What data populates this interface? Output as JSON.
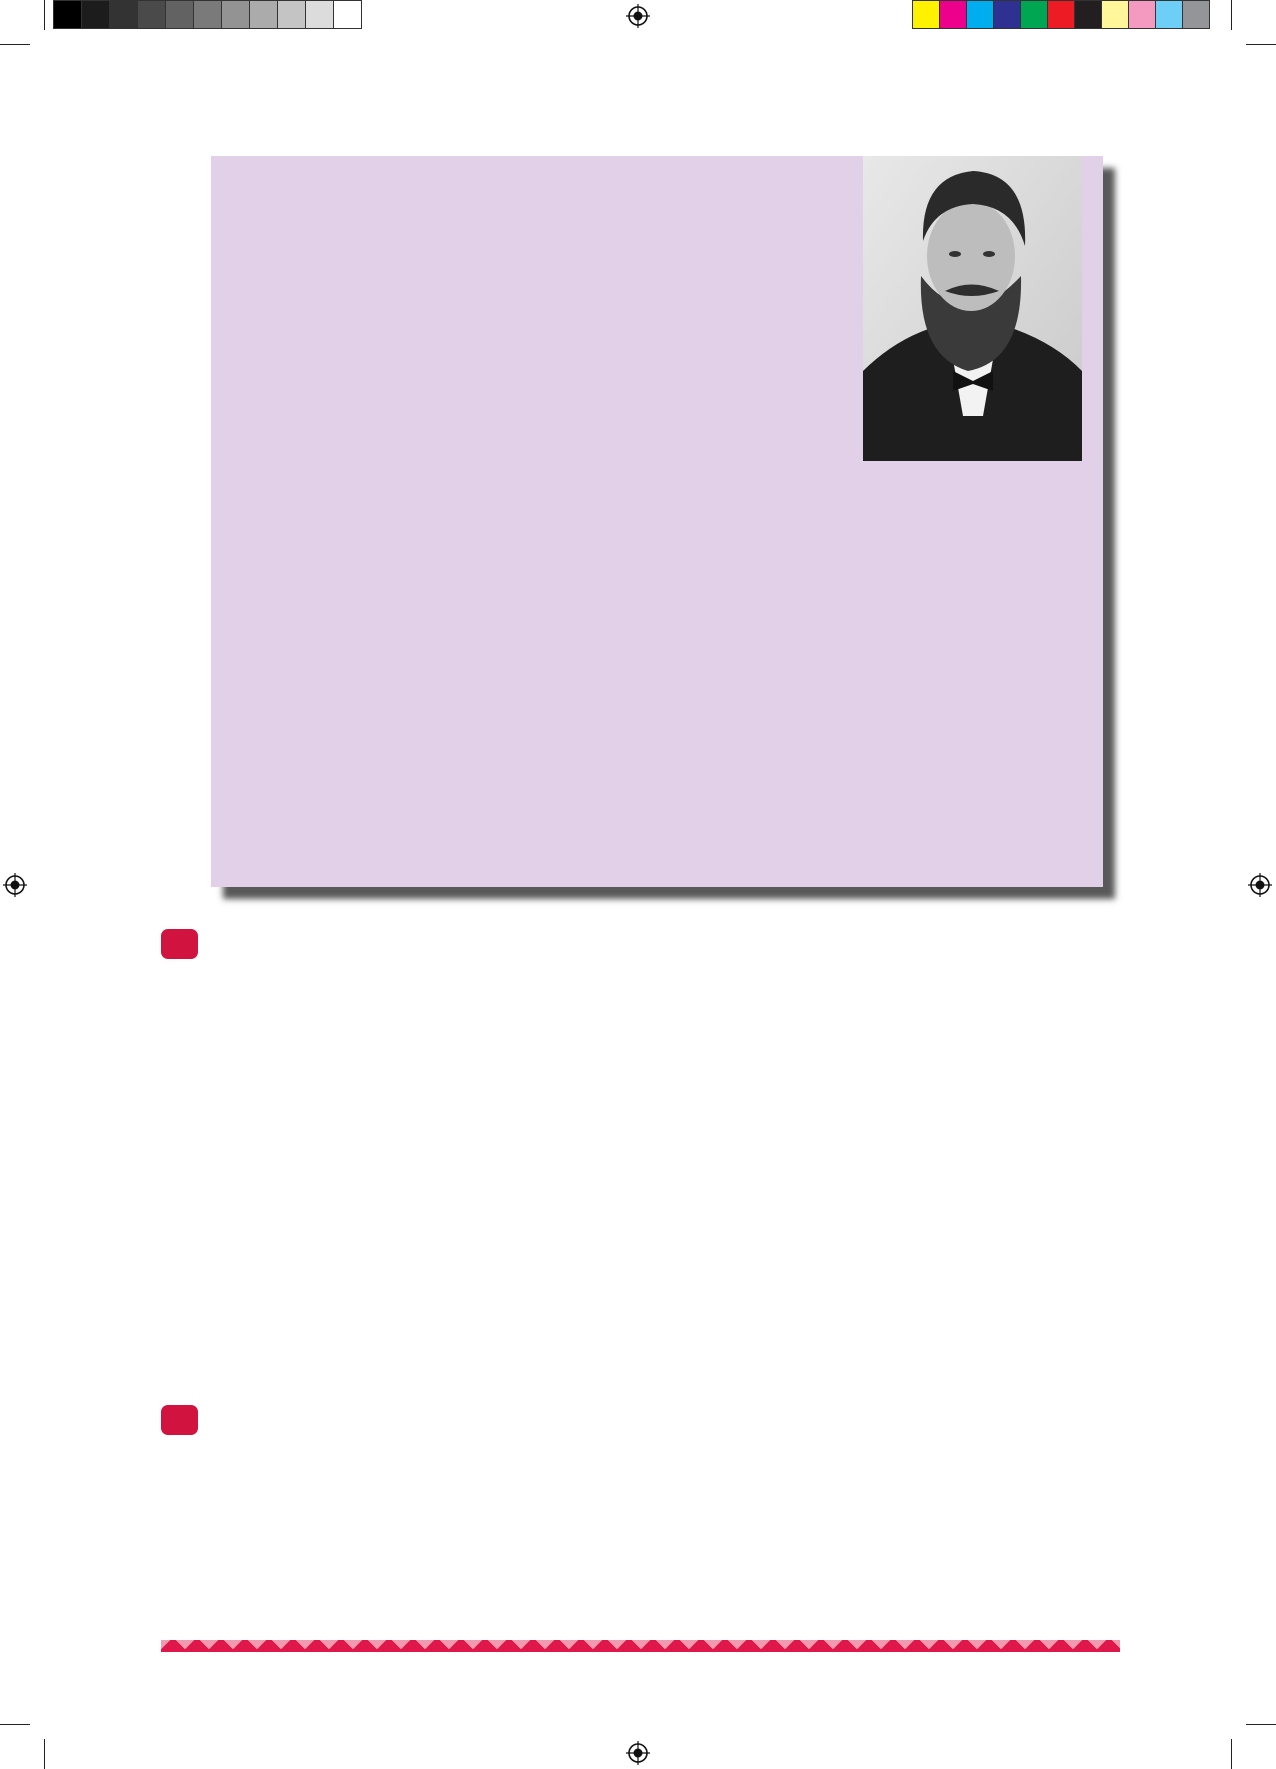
{
  "print_marks": {
    "gray_swatches": [
      "#000000",
      "#1c1c1c",
      "#333333",
      "#4a4a4a",
      "#626262",
      "#7a7a7a",
      "#939393",
      "#ababab",
      "#c4c4c4",
      "#dcdcdc",
      "#ffffff"
    ],
    "color_swatches": [
      "#fff200",
      "#ec008c",
      "#00aeef",
      "#2e3192",
      "#00a651",
      "#ed1c24",
      "#231f20",
      "#fff799",
      "#f49ac1",
      "#6dcff6",
      "#939598"
    ]
  },
  "panel": {
    "background": "#e2d0e8",
    "photo_icon": "portrait-photo"
  },
  "accent_color": "#d0143f"
}
